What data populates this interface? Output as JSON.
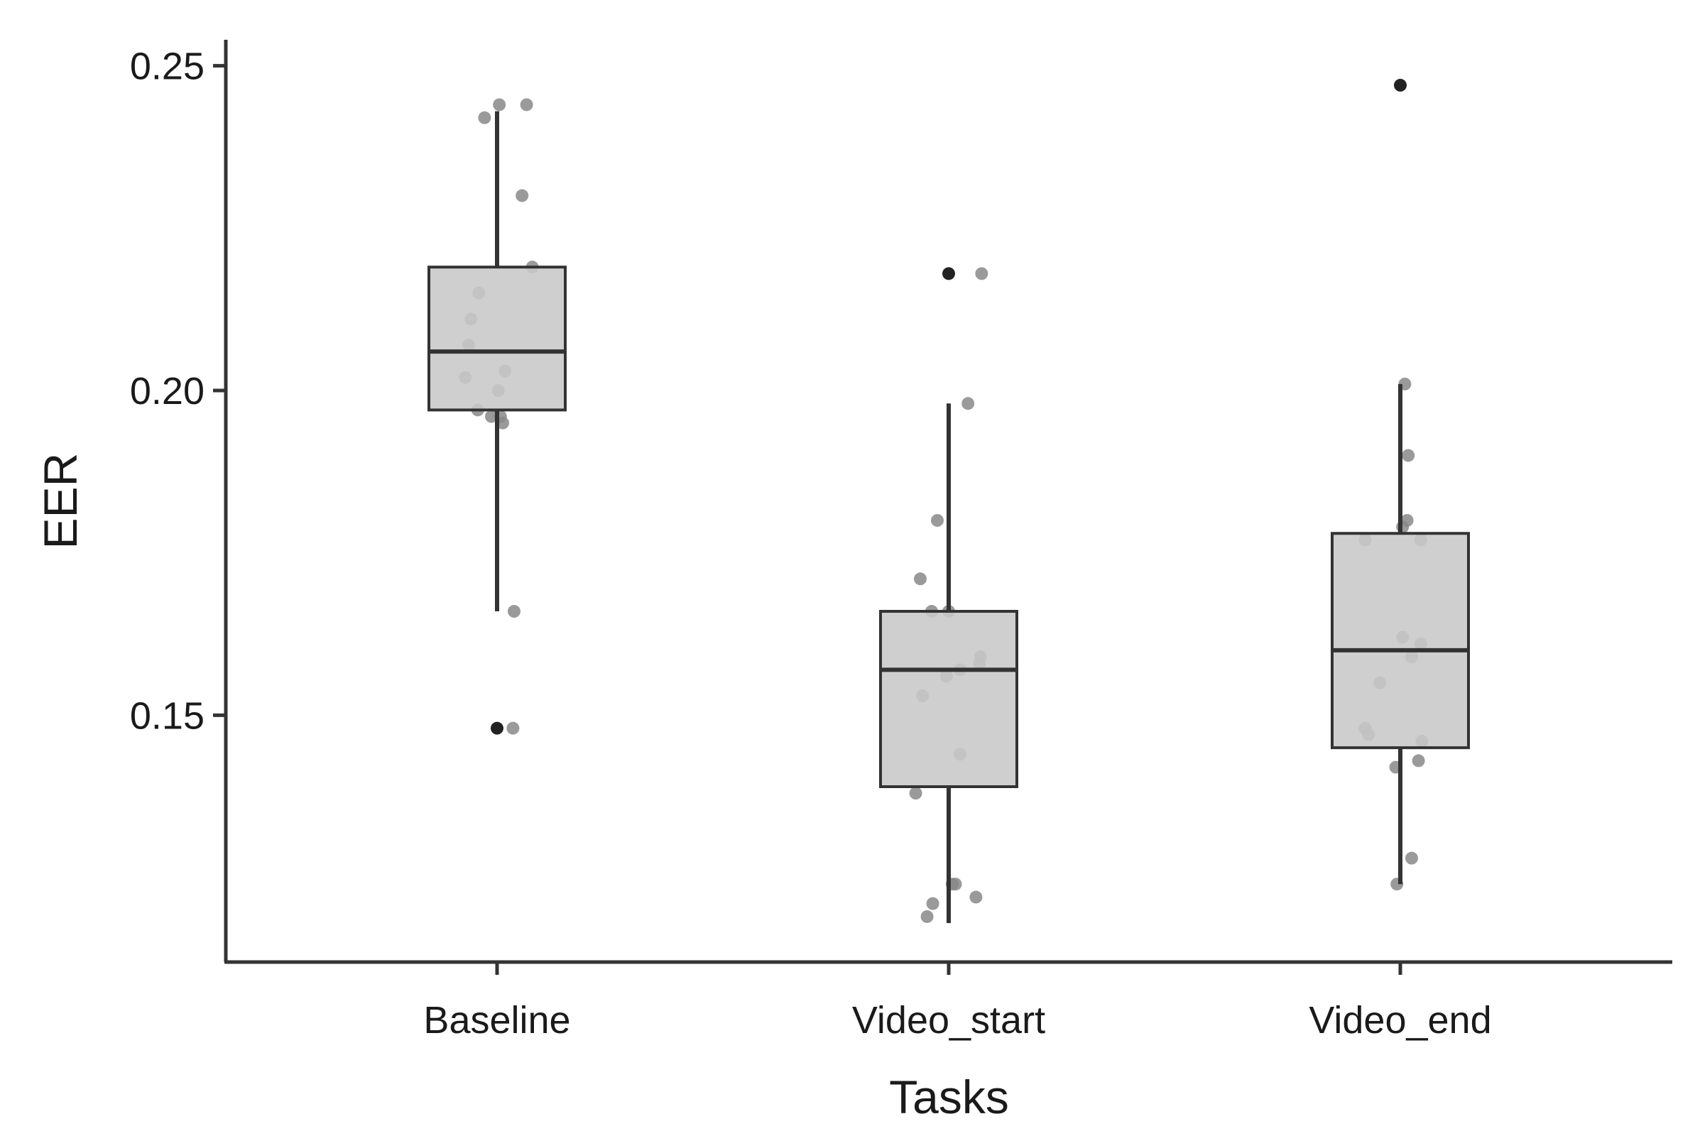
{
  "chart_data": {
    "type": "box",
    "title": "",
    "xlabel": "Tasks",
    "ylabel": "EER",
    "ylim": [
      0.112,
      0.254
    ],
    "yticks": [
      0.15,
      0.2,
      0.25
    ],
    "ytick_labels": [
      "0.15",
      "0.20",
      "0.25"
    ],
    "categories": [
      "Baseline",
      "Video_start",
      "Video_end"
    ],
    "grid": false,
    "legend": "none",
    "colors": {
      "box_fill": "#c8c8c8",
      "box_stroke": "#333333",
      "point": "#888888",
      "outlier": "#222222",
      "axis": "#333333"
    },
    "boxes": [
      {
        "category": "Baseline",
        "whisker_low": 0.166,
        "q1": 0.197,
        "median": 0.206,
        "q3": 0.219,
        "whisker_high": 0.243,
        "outliers": [
          0.148
        ]
      },
      {
        "category": "Video_start",
        "whisker_low": 0.118,
        "q1": 0.139,
        "median": 0.157,
        "q3": 0.166,
        "whisker_high": 0.198,
        "outliers": [
          0.218
        ]
      },
      {
        "category": "Video_end",
        "whisker_low": 0.124,
        "q1": 0.145,
        "median": 0.16,
        "q3": 0.178,
        "whisker_high": 0.201,
        "outliers": [
          0.247
        ]
      }
    ],
    "points": [
      {
        "category": "Baseline",
        "values": [
          0.244,
          0.244,
          0.242,
          0.23,
          0.219,
          0.215,
          0.211,
          0.207,
          0.203,
          0.202,
          0.2,
          0.197,
          0.196,
          0.196,
          0.195,
          0.166,
          0.148
        ],
        "jitter": [
          0.02,
          0.26,
          -0.11,
          0.22,
          0.31,
          -0.16,
          -0.23,
          -0.25,
          0.07,
          -0.28,
          0.01,
          -0.17,
          -0.05,
          0.03,
          0.05,
          0.15,
          0.14
        ]
      },
      {
        "category": "Video_start",
        "values": [
          0.218,
          0.198,
          0.18,
          0.171,
          0.166,
          0.166,
          0.159,
          0.158,
          0.157,
          0.156,
          0.153,
          0.144,
          0.138,
          0.124,
          0.124,
          0.122,
          0.121,
          0.119
        ],
        "jitter": [
          0.29,
          0.17,
          -0.1,
          -0.25,
          -0.15,
          0.0,
          0.28,
          0.27,
          0.1,
          -0.02,
          -0.23,
          0.1,
          -0.29,
          0.03,
          0.06,
          0.24,
          -0.14,
          -0.19
        ]
      },
      {
        "category": "Video_end",
        "values": [
          0.201,
          0.19,
          0.18,
          0.179,
          0.177,
          0.177,
          0.162,
          0.161,
          0.159,
          0.155,
          0.148,
          0.147,
          0.146,
          0.143,
          0.142,
          0.128,
          0.124
        ],
        "jitter": [
          0.04,
          0.07,
          0.06,
          0.02,
          0.18,
          -0.31,
          0.02,
          0.18,
          0.1,
          -0.18,
          -0.31,
          -0.28,
          0.19,
          0.16,
          -0.04,
          0.1,
          -0.03
        ]
      }
    ]
  }
}
